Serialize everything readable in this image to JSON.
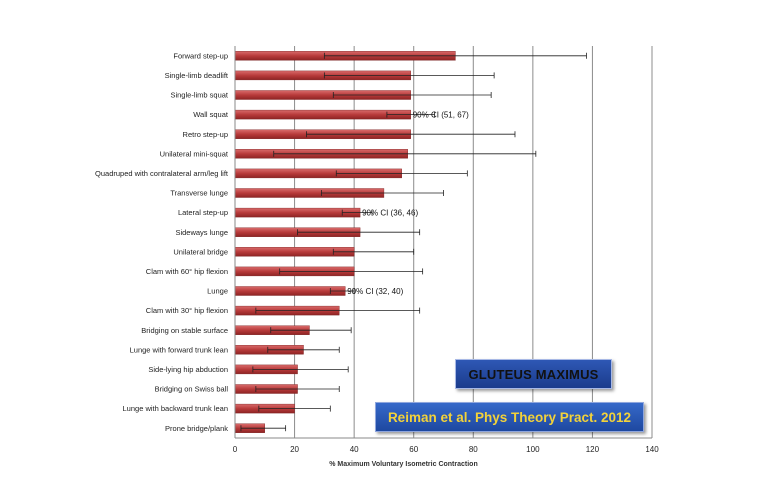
{
  "chart_data": {
    "type": "bar",
    "orientation": "horizontal",
    "title": "GLUTEUS MAXIMUS",
    "source": "Reiman et al. Phys Theory Pract. 2012",
    "xlabel": "% Maximum Voluntary Isometric Contraction",
    "ylabel": "",
    "xlim": [
      0,
      140
    ],
    "xticks": [
      "0",
      "20",
      "40",
      "60",
      "80",
      "100",
      "120",
      "140"
    ],
    "grid": "vertical",
    "bar_color": "#b83b3b",
    "categories": [
      "Forward step-up",
      "Single-limb deadlift",
      "Single-limb squat",
      "Wall squat",
      "Retro step-up",
      "Unilateral mini-squat",
      "Quadruped with contralateral arm/leg lift",
      "Transverse lunge",
      "Lateral step-up",
      "Sideways lunge",
      "Unilateral bridge",
      "Clam with 60° hip flexion",
      "Lunge",
      "Clam with 30° hip flexion",
      "Bridging on stable surface",
      "Lunge with forward trunk lean",
      "Side-lying hip abduction",
      "Bridging on Swiss ball",
      "Lunge with backward trunk lean",
      "Prone bridge/plank"
    ],
    "values": [
      74,
      59,
      59,
      59,
      59,
      58,
      56,
      50,
      42,
      42,
      40,
      40,
      37,
      35,
      25,
      23,
      21,
      21,
      20,
      10
    ],
    "ci_lower": [
      30,
      30,
      33,
      51,
      24,
      13,
      34,
      29,
      36,
      21,
      33,
      15,
      32,
      7,
      12,
      11,
      6,
      7,
      8,
      2
    ],
    "ci_upper": [
      118,
      87,
      86,
      67,
      94,
      101,
      78,
      70,
      46,
      62,
      60,
      63,
      40,
      62,
      39,
      35,
      38,
      35,
      32,
      17
    ],
    "annotations": [
      {
        "category": "Wall squat",
        "text": "90% CI (51, 67)"
      },
      {
        "category": "Lateral step-up",
        "text": "90% CI (36, 46)"
      },
      {
        "category": "Lunge",
        "text": "90% CI (32, 40)"
      }
    ]
  }
}
